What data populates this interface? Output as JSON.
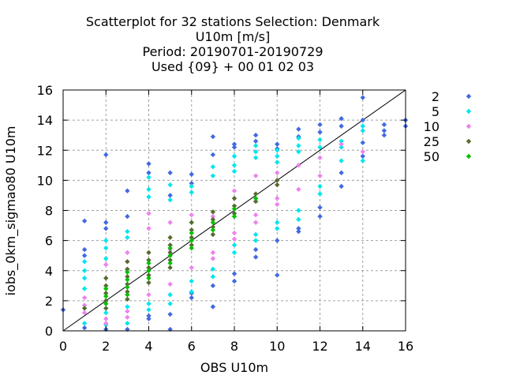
{
  "chart_data": {
    "type": "scatter",
    "title_lines": [
      "Scatterplot for   32 stations Selection: Denmark",
      "U10m [m/s]",
      "Period: 20190701-20190729",
      "Used {09} + 00 01 02 03"
    ],
    "xlabel": "OBS U10m",
    "ylabel": "iobs_0km_sigmao80 U10m",
    "xlim": [
      0,
      16
    ],
    "ylim": [
      0,
      16
    ],
    "xticks": [
      "0",
      "2",
      "4",
      "6",
      "8",
      "10",
      "12",
      "14",
      "16"
    ],
    "yticks": [
      "0",
      "2",
      "4",
      "6",
      "8",
      "10",
      "12",
      "14",
      "16"
    ],
    "grid": true,
    "legend_position": "right",
    "reference_line": "y = x",
    "series": [
      {
        "name": "2",
        "color": "#4169e1",
        "points": [
          [
            0,
            1.4
          ],
          [
            1,
            7.3
          ],
          [
            1,
            5.4
          ],
          [
            1,
            5.0
          ],
          [
            1,
            0.2
          ],
          [
            2,
            11.7
          ],
          [
            2,
            7.2
          ],
          [
            2,
            6.8
          ],
          [
            2,
            0.1
          ],
          [
            3,
            9.3
          ],
          [
            3,
            7.6
          ],
          [
            3,
            0.1
          ],
          [
            4,
            11.1
          ],
          [
            4,
            10.5
          ],
          [
            4,
            1.0
          ],
          [
            4,
            0.8
          ],
          [
            5,
            10.5
          ],
          [
            5,
            9.0
          ],
          [
            5,
            1.1
          ],
          [
            5,
            0.1
          ],
          [
            6,
            10.4
          ],
          [
            6,
            9.8
          ],
          [
            6,
            2.2
          ],
          [
            6,
            2.5
          ],
          [
            7,
            12.9
          ],
          [
            7,
            11.7
          ],
          [
            7,
            3.0
          ],
          [
            7,
            1.6
          ],
          [
            8,
            12.4
          ],
          [
            8,
            12.2
          ],
          [
            8,
            3.8
          ],
          [
            8,
            3.3
          ],
          [
            9,
            13.0
          ],
          [
            9,
            12.6
          ],
          [
            9,
            5.4
          ],
          [
            9,
            4.9
          ],
          [
            10,
            12.4
          ],
          [
            10,
            12.1
          ],
          [
            10,
            6.0
          ],
          [
            10,
            3.7
          ],
          [
            11,
            13.4
          ],
          [
            11,
            12.9
          ],
          [
            11,
            6.8
          ],
          [
            11,
            6.6
          ],
          [
            12,
            13.7
          ],
          [
            12,
            13.2
          ],
          [
            12,
            8.2
          ],
          [
            12,
            7.6
          ],
          [
            13,
            14.1
          ],
          [
            13,
            13.6
          ],
          [
            13,
            10.5
          ],
          [
            13,
            9.6
          ],
          [
            14,
            15.5
          ],
          [
            14,
            14.0
          ],
          [
            14,
            12.5
          ],
          [
            14,
            11.6
          ],
          [
            15,
            13.7
          ],
          [
            15,
            13.3
          ],
          [
            15,
            13.0
          ],
          [
            16,
            14.0
          ],
          [
            16,
            13.6
          ]
        ]
      },
      {
        "name": "5",
        "color": "#00e5ee",
        "points": [
          [
            1,
            4.6
          ],
          [
            1,
            4.0
          ],
          [
            1,
            3.5
          ],
          [
            1,
            2.8
          ],
          [
            1,
            0.5
          ],
          [
            2,
            6.0
          ],
          [
            2,
            5.5
          ],
          [
            2,
            4.8
          ],
          [
            2,
            1.2
          ],
          [
            2,
            0.4
          ],
          [
            3,
            6.6
          ],
          [
            3,
            6.2
          ],
          [
            3,
            1.6
          ],
          [
            3,
            0.5
          ],
          [
            4,
            10.2
          ],
          [
            4,
            9.4
          ],
          [
            4,
            8.9
          ],
          [
            4,
            1.8
          ],
          [
            4,
            1.4
          ],
          [
            5,
            9.7
          ],
          [
            5,
            8.7
          ],
          [
            5,
            1.8
          ],
          [
            5,
            2.4
          ],
          [
            6,
            9.6
          ],
          [
            6,
            9.2
          ],
          [
            6,
            2.6
          ],
          [
            6,
            3.3
          ],
          [
            7,
            10.9
          ],
          [
            7,
            10.3
          ],
          [
            7,
            3.6
          ],
          [
            7,
            4.1
          ],
          [
            8,
            11.6
          ],
          [
            8,
            11.0
          ],
          [
            8,
            10.6
          ],
          [
            8,
            5.2
          ],
          [
            8,
            5.7
          ],
          [
            9,
            12.3
          ],
          [
            9,
            11.9
          ],
          [
            9,
            11.5
          ],
          [
            9,
            6.4
          ],
          [
            9,
            6.0
          ],
          [
            10,
            12.0
          ],
          [
            10,
            11.6
          ],
          [
            10,
            11.2
          ],
          [
            10,
            7.2
          ],
          [
            10,
            6.8
          ],
          [
            11,
            12.8
          ],
          [
            11,
            12.3
          ],
          [
            11,
            11.9
          ],
          [
            11,
            8.0
          ],
          [
            11,
            7.4
          ],
          [
            12,
            12.7
          ],
          [
            12,
            12.2
          ],
          [
            12,
            9.6
          ],
          [
            12,
            9.1
          ],
          [
            13,
            12.6
          ],
          [
            13,
            12.2
          ],
          [
            13,
            11.3
          ],
          [
            14,
            13.6
          ],
          [
            14,
            13.3
          ],
          [
            14,
            11.3
          ]
        ]
      },
      {
        "name": "10",
        "color": "#ee82ee",
        "points": [
          [
            1,
            2.2
          ],
          [
            1,
            1.7
          ],
          [
            1,
            1.2
          ],
          [
            2,
            4.4
          ],
          [
            2,
            0.8
          ],
          [
            2,
            0.5
          ],
          [
            3,
            5.2
          ],
          [
            3,
            1.3
          ],
          [
            3,
            0.9
          ],
          [
            4,
            7.8
          ],
          [
            4,
            6.8
          ],
          [
            4,
            2.4
          ],
          [
            5,
            7.2
          ],
          [
            5,
            5.4
          ],
          [
            5,
            3.1
          ],
          [
            6,
            7.7
          ],
          [
            6,
            4.2
          ],
          [
            7,
            7.6
          ],
          [
            7,
            5.2
          ],
          [
            7,
            4.8
          ],
          [
            8,
            9.3
          ],
          [
            8,
            6.5
          ],
          [
            8,
            6.1
          ],
          [
            9,
            10.3
          ],
          [
            9,
            7.7
          ],
          [
            9,
            7.2
          ],
          [
            10,
            10.5
          ],
          [
            10,
            8.8
          ],
          [
            10,
            8.4
          ],
          [
            11,
            11.0
          ],
          [
            11,
            9.4
          ],
          [
            12,
            11.5
          ],
          [
            12,
            10.3
          ],
          [
            13,
            12.4
          ],
          [
            14,
            11.9
          ]
        ]
      },
      {
        "name": "25",
        "color": "#556b2f",
        "points": [
          [
            1,
            1.5
          ],
          [
            2,
            3.5
          ],
          [
            2,
            3.0
          ],
          [
            2,
            2.5
          ],
          [
            2,
            2.0
          ],
          [
            2,
            1.5
          ],
          [
            3,
            4.6
          ],
          [
            3,
            4.1
          ],
          [
            3,
            3.6
          ],
          [
            3,
            3.1
          ],
          [
            3,
            2.6
          ],
          [
            3,
            2.1
          ],
          [
            4,
            5.2
          ],
          [
            4,
            4.7
          ],
          [
            4,
            4.2
          ],
          [
            4,
            3.7
          ],
          [
            4,
            3.2
          ],
          [
            5,
            6.2
          ],
          [
            5,
            5.7
          ],
          [
            5,
            5.2
          ],
          [
            5,
            4.7
          ],
          [
            5,
            4.2
          ],
          [
            6,
            7.2
          ],
          [
            6,
            6.7
          ],
          [
            6,
            6.2
          ],
          [
            6,
            5.7
          ],
          [
            7,
            7.9
          ],
          [
            7,
            7.4
          ],
          [
            7,
            6.9
          ],
          [
            7,
            6.4
          ],
          [
            8,
            8.8
          ],
          [
            8,
            8.3
          ],
          [
            8,
            7.8
          ],
          [
            9,
            9.1
          ],
          [
            9,
            8.6
          ],
          [
            10,
            10.0
          ],
          [
            10,
            9.7
          ]
        ]
      },
      {
        "name": "50",
        "color": "#00c000",
        "points": [
          [
            2,
            2.8
          ],
          [
            2,
            2.3
          ],
          [
            2,
            1.8
          ],
          [
            3,
            3.9
          ],
          [
            3,
            3.4
          ],
          [
            3,
            2.9
          ],
          [
            3,
            2.4
          ],
          [
            4,
            4.5
          ],
          [
            4,
            4.0
          ],
          [
            4,
            3.5
          ],
          [
            5,
            5.5
          ],
          [
            5,
            5.0
          ],
          [
            5,
            4.5
          ],
          [
            6,
            6.5
          ],
          [
            6,
            6.0
          ],
          [
            6,
            5.5
          ],
          [
            7,
            7.2
          ],
          [
            7,
            6.7
          ],
          [
            8,
            8.1
          ],
          [
            8,
            7.6
          ],
          [
            9,
            8.8
          ]
        ]
      }
    ]
  }
}
